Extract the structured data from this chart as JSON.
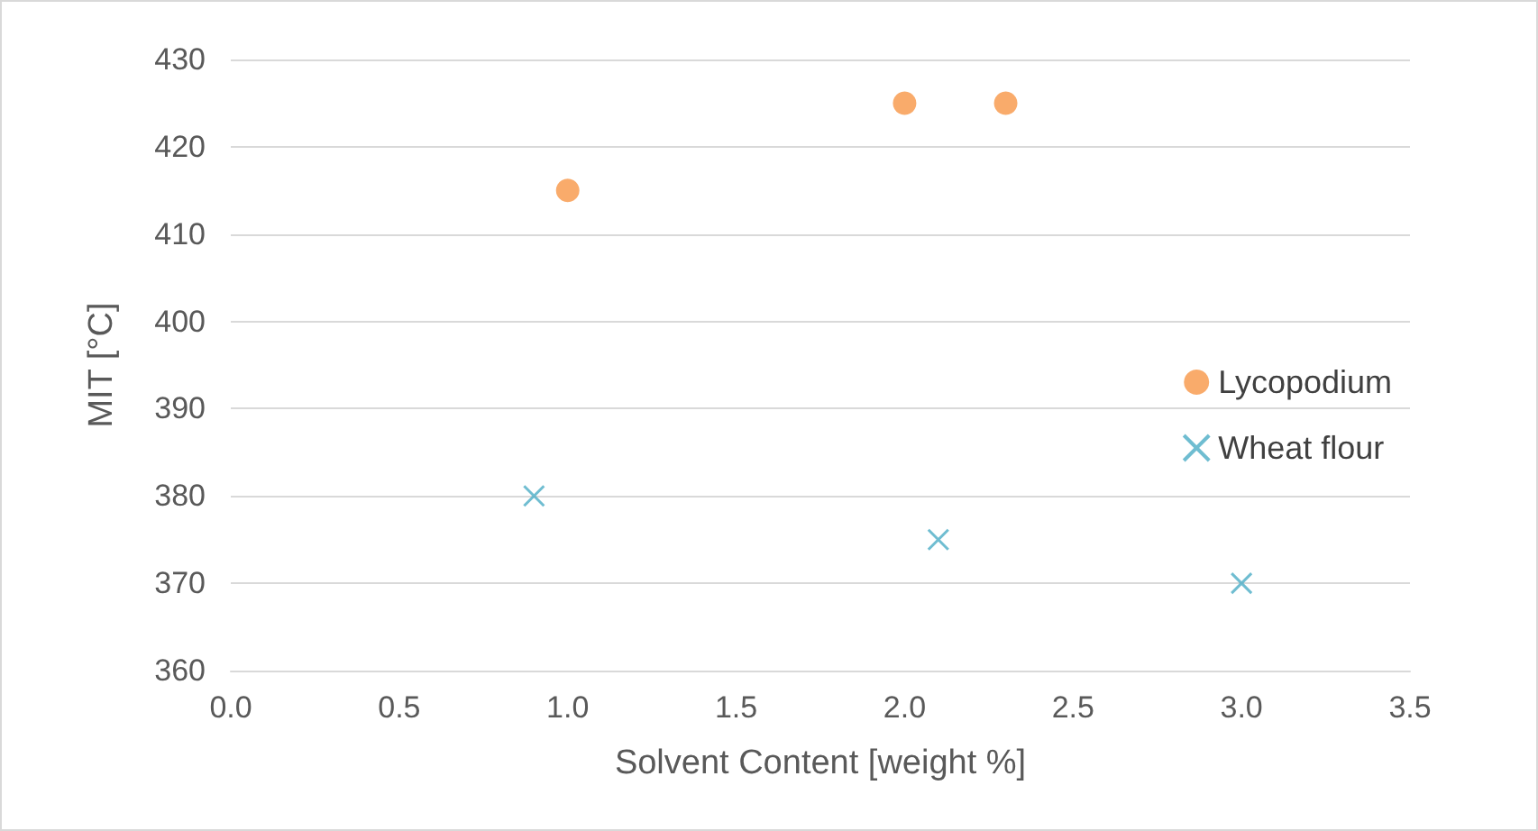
{
  "chart_data": {
    "type": "scatter",
    "xlabel": "Solvent Content [weight %]",
    "ylabel": "MIT [°C]",
    "xlim": [
      0,
      3.5
    ],
    "xticks": [
      {
        "value": 0,
        "label": "0.0"
      },
      {
        "value": 0.5,
        "label": "0.5"
      },
      {
        "value": 1,
        "label": "1.0"
      },
      {
        "value": 1.5,
        "label": "1.5"
      },
      {
        "value": 2,
        "label": "2.0"
      },
      {
        "value": 2.5,
        "label": "2.5"
      },
      {
        "value": 3,
        "label": "3.0"
      },
      {
        "value": 3.5,
        "label": "3.5"
      }
    ],
    "ylim": [
      360,
      430
    ],
    "yticks": [
      360,
      370,
      380,
      390,
      400,
      410,
      420,
      430
    ],
    "grid": "y",
    "legend": "right",
    "series": [
      {
        "name": "Lycopodium",
        "color": "#f79646",
        "marker": "circle",
        "x": [
          1.0,
          2.0,
          2.3
        ],
        "values": [
          415,
          425,
          425
        ]
      },
      {
        "name": "Wheat flour",
        "color": "#4bacc6",
        "marker": "cross",
        "x": [
          0.9,
          2.1,
          3.0
        ],
        "values": [
          380,
          375,
          370
        ]
      }
    ]
  }
}
